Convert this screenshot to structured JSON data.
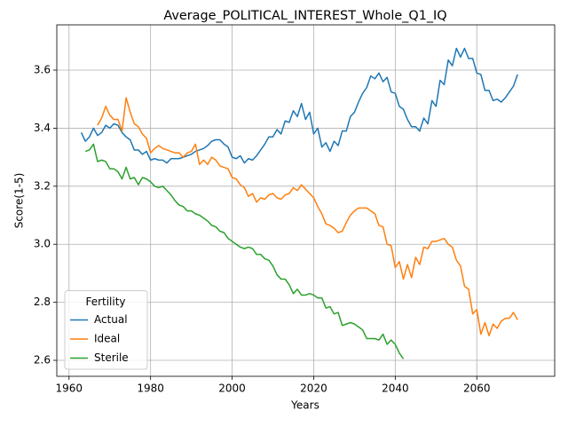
{
  "chart_data": {
    "type": "line",
    "title": "Average_POLITICAL_INTEREST_Whole_Q1_IQ",
    "xlabel": "Years",
    "ylabel": "Score(1-5)",
    "legend_title": "Fertility",
    "legend": "lower left",
    "grid": true,
    "xlim": [
      1957.0,
      2079.1
    ],
    "ylim": [
      2.545,
      3.756
    ],
    "xticks": [
      1960,
      1980,
      2000,
      2020,
      2040,
      2060
    ],
    "yticks": [
      2.6,
      2.8,
      {
        "value": 3,
        "label": "3.0"
      },
      3.2,
      3.4,
      3.6
    ],
    "x": [
      1963,
      1964,
      1965,
      1966,
      1967,
      1968,
      1969,
      1970,
      1971,
      1972,
      1973,
      1974,
      1975,
      1976,
      1977,
      1978,
      1979,
      1980,
      1981,
      1982,
      1983,
      1984,
      1985,
      1986,
      1987,
      1988,
      1989,
      1990,
      1991,
      1992,
      1993,
      1994,
      1995,
      1996,
      1997,
      1998,
      1999,
      2000,
      2001,
      2002,
      2003,
      2004,
      2005,
      2006,
      2007,
      2008,
      2009,
      2010,
      2011,
      2012,
      2013,
      2014,
      2015,
      2016,
      2017,
      2018,
      2019,
      2020,
      2021,
      2022,
      2023,
      2024,
      2025,
      2026,
      2027,
      2028,
      2029,
      2030,
      2031,
      2032,
      2033,
      2034,
      2035,
      2036,
      2037,
      2038,
      2039,
      2040,
      2041,
      2042,
      2043,
      2044,
      2045,
      2046,
      2047,
      2048,
      2049,
      2050,
      2051,
      2052,
      2053,
      2054,
      2055,
      2056,
      2057,
      2058,
      2059,
      2060,
      2061,
      2062,
      2063,
      2064,
      2065,
      2066,
      2067,
      2068,
      2069,
      2070
    ],
    "series": [
      {
        "name": "Actual",
        "color": "#1f77b4",
        "values": [
          3.385,
          3.355,
          3.37,
          3.4,
          3.375,
          3.385,
          3.41,
          3.4,
          3.415,
          3.41,
          3.385,
          3.37,
          3.36,
          3.325,
          3.325,
          3.31,
          3.32,
          3.29,
          3.295,
          3.29,
          3.29,
          3.28,
          3.295,
          3.295,
          3.295,
          3.3,
          3.305,
          3.31,
          3.32,
          3.325,
          3.33,
          3.34,
          3.355,
          3.36,
          3.36,
          3.345,
          3.335,
          3.3,
          3.295,
          3.305,
          3.28,
          3.295,
          3.29,
          3.305,
          3.325,
          3.345,
          3.37,
          3.37,
          3.395,
          3.38,
          3.425,
          3.42,
          3.46,
          3.44,
          3.485,
          3.43,
          3.455,
          3.38,
          3.4,
          3.335,
          3.35,
          3.32,
          3.355,
          3.34,
          3.39,
          3.39,
          3.44,
          3.455,
          3.49,
          3.52,
          3.54,
          3.58,
          3.57,
          3.59,
          3.56,
          3.575,
          3.525,
          3.52,
          3.475,
          3.465,
          3.43,
          3.405,
          3.405,
          3.39,
          3.435,
          3.415,
          3.495,
          3.475,
          3.565,
          3.55,
          3.635,
          3.615,
          3.675,
          3.645,
          3.675,
          3.64,
          3.64,
          3.59,
          3.585,
          3.53,
          3.53,
          3.495,
          3.5,
          3.49,
          3.505,
          3.525,
          3.545,
          3.585
        ]
      },
      {
        "name": "Ideal",
        "color": "#ff7f0e",
        "values": [
          null,
          null,
          null,
          null,
          3.41,
          3.435,
          3.475,
          3.445,
          3.43,
          3.43,
          3.39,
          3.505,
          3.455,
          3.415,
          3.405,
          3.38,
          3.365,
          3.315,
          3.33,
          3.34,
          3.33,
          3.325,
          3.32,
          3.315,
          3.315,
          3.3,
          3.315,
          3.32,
          3.345,
          3.275,
          3.29,
          3.275,
          3.3,
          3.29,
          3.27,
          3.265,
          3.26,
          3.23,
          3.225,
          3.205,
          3.195,
          3.165,
          3.175,
          3.145,
          3.16,
          3.155,
          3.17,
          3.175,
          3.16,
          3.155,
          3.17,
          3.175,
          3.195,
          3.185,
          3.205,
          3.19,
          3.175,
          3.16,
          3.13,
          3.105,
          3.07,
          3.065,
          3.055,
          3.04,
          3.045,
          3.075,
          3.1,
          3.115,
          3.125,
          3.125,
          3.125,
          3.115,
          3.105,
          3.065,
          3.06,
          3.0,
          2.995,
          2.92,
          2.94,
          2.88,
          2.93,
          2.885,
          2.955,
          2.93,
          2.99,
          2.985,
          3.01,
          3.01,
          3.015,
          3.02,
          3.0,
          2.99,
          2.945,
          2.925,
          2.855,
          2.845,
          2.76,
          2.775,
          2.69,
          2.73,
          2.685,
          2.725,
          2.71,
          2.735,
          2.745,
          2.745,
          2.765,
          2.74
        ]
      },
      {
        "name": "Sterile",
        "color": "#2ca02c",
        "values": [
          null,
          3.32,
          3.325,
          3.345,
          3.285,
          3.29,
          3.285,
          3.26,
          3.26,
          3.25,
          3.225,
          3.265,
          3.225,
          3.23,
          3.205,
          3.23,
          3.225,
          3.215,
          3.2,
          3.195,
          3.2,
          3.185,
          3.17,
          3.15,
          3.135,
          3.13,
          3.115,
          3.115,
          3.105,
          3.1,
          3.09,
          3.08,
          3.065,
          3.06,
          3.045,
          3.04,
          3.02,
          3.01,
          3.0,
          2.99,
          2.985,
          2.99,
          2.985,
          2.965,
          2.965,
          2.95,
          2.945,
          2.925,
          2.895,
          2.88,
          2.88,
          2.86,
          2.83,
          2.845,
          2.825,
          2.825,
          2.83,
          2.825,
          2.815,
          2.815,
          2.78,
          2.785,
          2.76,
          2.765,
          2.72,
          2.725,
          2.73,
          2.725,
          2.715,
          2.705,
          2.675,
          2.675,
          2.675,
          2.67,
          2.69,
          2.655,
          2.67,
          2.655,
          2.625,
          2.605,
          null,
          null,
          null,
          null,
          null,
          null,
          null,
          null,
          null,
          null,
          null,
          null,
          null,
          null,
          null,
          null,
          null,
          null,
          null,
          null,
          null,
          null,
          null,
          null,
          null,
          null,
          null,
          null
        ]
      }
    ]
  }
}
